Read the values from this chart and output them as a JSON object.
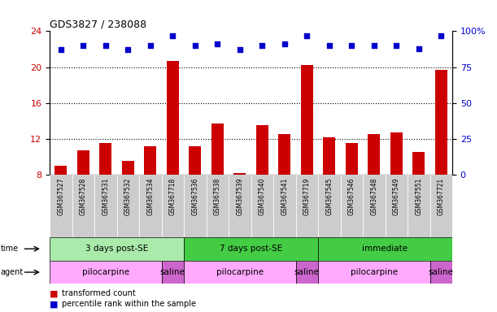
{
  "title": "GDS3827 / 238088",
  "samples": [
    "GSM367527",
    "GSM367528",
    "GSM367531",
    "GSM367532",
    "GSM367534",
    "GSM367718",
    "GSM367536",
    "GSM367538",
    "GSM367539",
    "GSM367540",
    "GSM367541",
    "GSM367719",
    "GSM367545",
    "GSM367546",
    "GSM367548",
    "GSM367549",
    "GSM367551",
    "GSM367721"
  ],
  "transformed_count": [
    9.0,
    10.7,
    11.5,
    9.5,
    11.2,
    20.7,
    11.2,
    13.7,
    8.2,
    13.5,
    12.5,
    20.2,
    12.2,
    11.5,
    12.5,
    12.7,
    10.5,
    19.7
  ],
  "percentile_rank": [
    87,
    90,
    90,
    87,
    90,
    97,
    90,
    91,
    87,
    90,
    91,
    97,
    90,
    90,
    90,
    90,
    88,
    97
  ],
  "ylim_left": [
    8,
    24
  ],
  "ylim_right": [
    0,
    100
  ],
  "yticks_left": [
    8,
    12,
    16,
    20,
    24
  ],
  "yticks_right": [
    0,
    25,
    50,
    75,
    100
  ],
  "bar_color": "#cc0000",
  "dot_color": "#0000cc",
  "bar_bottom": 8,
  "time_groups": [
    {
      "label": "3 days post-SE",
      "start": 0,
      "end": 5,
      "color": "#aaeaaa"
    },
    {
      "label": "7 days post-SE",
      "start": 6,
      "end": 11,
      "color": "#44cc44"
    },
    {
      "label": "immediate",
      "start": 12,
      "end": 17,
      "color": "#44cc44"
    }
  ],
  "agent_groups": [
    {
      "label": "pilocarpine",
      "start": 0,
      "end": 4,
      "color": "#ffaaff"
    },
    {
      "label": "saline",
      "start": 5,
      "end": 5,
      "color": "#cc66cc"
    },
    {
      "label": "pilocarpine",
      "start": 6,
      "end": 10,
      "color": "#ffaaff"
    },
    {
      "label": "saline",
      "start": 11,
      "end": 11,
      "color": "#cc66cc"
    },
    {
      "label": "pilocarpine",
      "start": 12,
      "end": 16,
      "color": "#ffaaff"
    },
    {
      "label": "saline",
      "start": 17,
      "end": 17,
      "color": "#cc66cc"
    }
  ],
  "legend_items": [
    {
      "label": "transformed count",
      "color": "#cc0000"
    },
    {
      "label": "percentile rank within the sample",
      "color": "#0000cc"
    }
  ],
  "bg_color": "#ffffff",
  "tick_label_color_left": "#cc0000",
  "tick_label_color_right": "#0000cc",
  "xticklabel_bg": "#cccccc",
  "n_samples": 18
}
